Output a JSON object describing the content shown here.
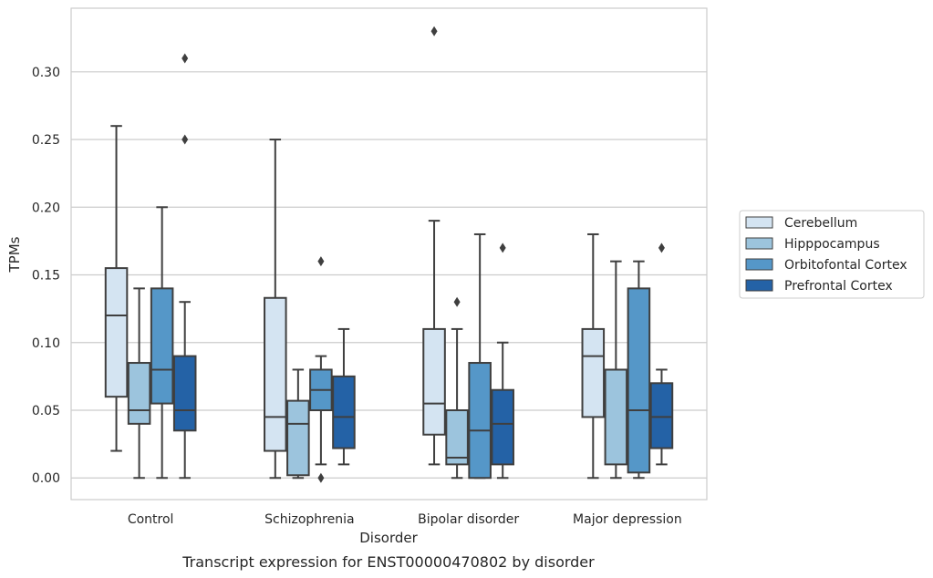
{
  "chart_data": {
    "type": "box",
    "title": "",
    "caption": "Transcript expression for ENST00000470802 by disorder",
    "xlabel": "Disorder",
    "ylabel": "TPMs",
    "ylim": [
      -0.016,
      0.347
    ],
    "yticks": [
      0.0,
      0.05,
      0.1,
      0.15,
      0.2,
      0.25,
      0.3
    ],
    "ytick_labels": [
      "0.00",
      "0.05",
      "0.10",
      "0.15",
      "0.20",
      "0.25",
      "0.30"
    ],
    "grid": "horizontal",
    "legend_position": "right",
    "categories": [
      "Control",
      "Schizophrenia",
      "Bipolar disorder",
      "Major depression"
    ],
    "series": [
      {
        "name": "Cerebellum",
        "color": "#d4e4f2",
        "boxes": [
          {
            "whislo": 0.02,
            "q1": 0.06,
            "med": 0.12,
            "q3": 0.155,
            "whishi": 0.26,
            "fliers": []
          },
          {
            "whislo": 0.0,
            "q1": 0.02,
            "med": 0.045,
            "q3": 0.133,
            "whishi": 0.25,
            "fliers": []
          },
          {
            "whislo": 0.01,
            "q1": 0.032,
            "med": 0.055,
            "q3": 0.11,
            "whishi": 0.19,
            "fliers": [
              0.33
            ]
          },
          {
            "whislo": 0.0,
            "q1": 0.045,
            "med": 0.09,
            "q3": 0.11,
            "whishi": 0.18,
            "fliers": []
          }
        ]
      },
      {
        "name": "Hipppocampus",
        "color": "#9cc4dd",
        "boxes": [
          {
            "whislo": 0.0,
            "q1": 0.04,
            "med": 0.05,
            "q3": 0.085,
            "whishi": 0.14,
            "fliers": []
          },
          {
            "whislo": 0.0,
            "q1": 0.002,
            "med": 0.04,
            "q3": 0.057,
            "whishi": 0.08,
            "fliers": []
          },
          {
            "whislo": 0.0,
            "q1": 0.01,
            "med": 0.015,
            "q3": 0.05,
            "whishi": 0.11,
            "fliers": [
              0.13
            ]
          },
          {
            "whislo": 0.0,
            "q1": 0.01,
            "med": 0.08,
            "q3": 0.08,
            "whishi": 0.16,
            "fliers": []
          }
        ]
      },
      {
        "name": "Orbitofontal Cortex",
        "color": "#5597c8",
        "boxes": [
          {
            "whislo": 0.0,
            "q1": 0.055,
            "med": 0.08,
            "q3": 0.14,
            "whishi": 0.2,
            "fliers": []
          },
          {
            "whislo": 0.01,
            "q1": 0.05,
            "med": 0.065,
            "q3": 0.08,
            "whishi": 0.09,
            "fliers": [
              0.16,
              0.0
            ]
          },
          {
            "whislo": 0.0,
            "q1": 0.0,
            "med": 0.035,
            "q3": 0.085,
            "whishi": 0.18,
            "fliers": []
          },
          {
            "whislo": 0.0,
            "q1": 0.004,
            "med": 0.05,
            "q3": 0.14,
            "whishi": 0.16,
            "fliers": []
          }
        ]
      },
      {
        "name": "Prefrontal Cortex",
        "color": "#2462a6",
        "boxes": [
          {
            "whislo": 0.0,
            "q1": 0.035,
            "med": 0.05,
            "q3": 0.09,
            "whishi": 0.13,
            "fliers": [
              0.25,
              0.31
            ]
          },
          {
            "whislo": 0.01,
            "q1": 0.022,
            "med": 0.045,
            "q3": 0.075,
            "whishi": 0.11,
            "fliers": []
          },
          {
            "whislo": 0.0,
            "q1": 0.01,
            "med": 0.04,
            "q3": 0.065,
            "whishi": 0.1,
            "fliers": [
              0.17
            ]
          },
          {
            "whislo": 0.01,
            "q1": 0.022,
            "med": 0.045,
            "q3": 0.07,
            "whishi": 0.08,
            "fliers": [
              0.17
            ]
          }
        ]
      }
    ]
  }
}
